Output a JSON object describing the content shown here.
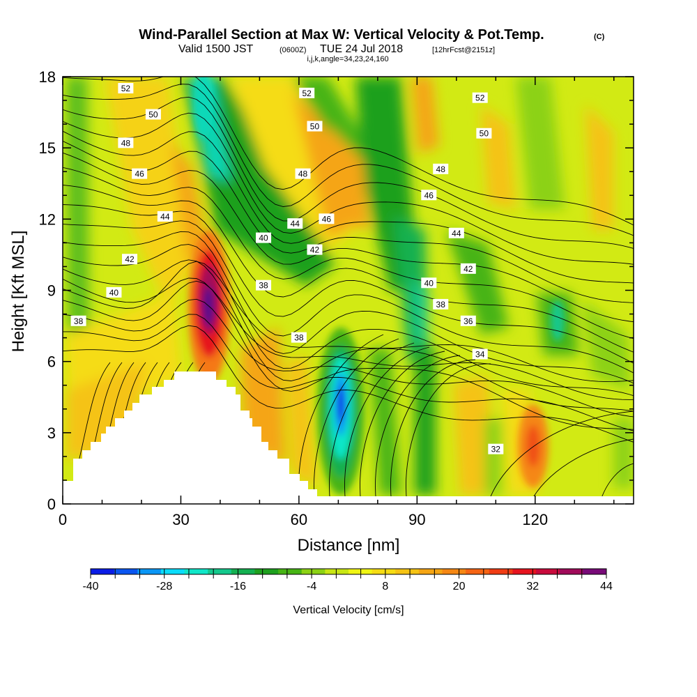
{
  "chart_data": {
    "type": "heatmap",
    "title": {
      "main": "Wind-Parallel Section at Max W: Vertical Velocity & Pot.Temp.",
      "main_suffix": "(C)",
      "valid_prefix": "Valid 1500 JST",
      "valid_zulu": "(0600Z)",
      "valid_date": "TUE 24 Jul 2018",
      "forecast": "[12hrFcst@2151z]",
      "params": "i,j,k,angle=34,23,24,160"
    },
    "xlabel": "Distance [nm]",
    "ylabel": "Height [Kft MSL]",
    "xlim": [
      0,
      145
    ],
    "ylim": [
      0,
      18
    ],
    "x_ticks": [
      0,
      30,
      60,
      90,
      120
    ],
    "x_tick_labels": [
      "0",
      "30",
      "60",
      "90",
      "120"
    ],
    "y_ticks": [
      0,
      3,
      6,
      9,
      12,
      15,
      18
    ],
    "y_tick_labels": [
      "0",
      "3",
      "6",
      "9",
      "12",
      "15",
      "18"
    ],
    "colorbar": {
      "title": "Vertical Velocity [cm/s]",
      "min": -40,
      "max": 44,
      "step": 4,
      "tick_values": [
        -40,
        -28,
        -16,
        -4,
        8,
        20,
        32,
        44
      ],
      "tick_labels": [
        "-40",
        "-28",
        "-16",
        "-4",
        "8",
        "20",
        "32",
        "44"
      ],
      "colors": [
        "#0a1ce6",
        "#0a55f0",
        "#0a96f5",
        "#0adcfa",
        "#10e6c8",
        "#14c88c",
        "#14b050",
        "#1ea01e",
        "#46b414",
        "#8cd214",
        "#c8e614",
        "#f0f514",
        "#f5dc14",
        "#f5c314",
        "#f5a514",
        "#f58714",
        "#f56414",
        "#f03c14",
        "#e6141e",
        "#c80a3c",
        "#a00a5a",
        "#780a78"
      ]
    },
    "contour_labels": [
      {
        "text": "52",
        "x": 16,
        "y": 17.5
      },
      {
        "text": "50",
        "x": 23,
        "y": 16.4
      },
      {
        "text": "48",
        "x": 16,
        "y": 15.2
      },
      {
        "text": "46",
        "x": 19.5,
        "y": 13.9
      },
      {
        "text": "44",
        "x": 26,
        "y": 12.1
      },
      {
        "text": "42",
        "x": 17,
        "y": 10.3
      },
      {
        "text": "40",
        "x": 13,
        "y": 8.9
      },
      {
        "text": "38",
        "x": 4,
        "y": 7.7
      },
      {
        "text": "52",
        "x": 62,
        "y": 17.3
      },
      {
        "text": "50",
        "x": 64,
        "y": 15.9
      },
      {
        "text": "48",
        "x": 61,
        "y": 13.9
      },
      {
        "text": "46",
        "x": 67,
        "y": 12.0
      },
      {
        "text": "44",
        "x": 59,
        "y": 11.8
      },
      {
        "text": "40",
        "x": 51,
        "y": 11.2
      },
      {
        "text": "42",
        "x": 64,
        "y": 10.7
      },
      {
        "text": "38",
        "x": 51,
        "y": 9.2
      },
      {
        "text": "38",
        "x": 60,
        "y": 7.0
      },
      {
        "text": "52",
        "x": 106,
        "y": 17.1
      },
      {
        "text": "50",
        "x": 107,
        "y": 15.6
      },
      {
        "text": "48",
        "x": 96,
        "y": 14.1
      },
      {
        "text": "46",
        "x": 93,
        "y": 13.0
      },
      {
        "text": "44",
        "x": 100,
        "y": 11.4
      },
      {
        "text": "42",
        "x": 103,
        "y": 9.9
      },
      {
        "text": "40",
        "x": 93,
        "y": 9.3
      },
      {
        "text": "38",
        "x": 96,
        "y": 8.4
      },
      {
        "text": "36",
        "x": 103,
        "y": 7.7
      },
      {
        "text": "34",
        "x": 106,
        "y": 6.3
      },
      {
        "text": "32",
        "x": 110,
        "y": 2.3
      }
    ]
  }
}
